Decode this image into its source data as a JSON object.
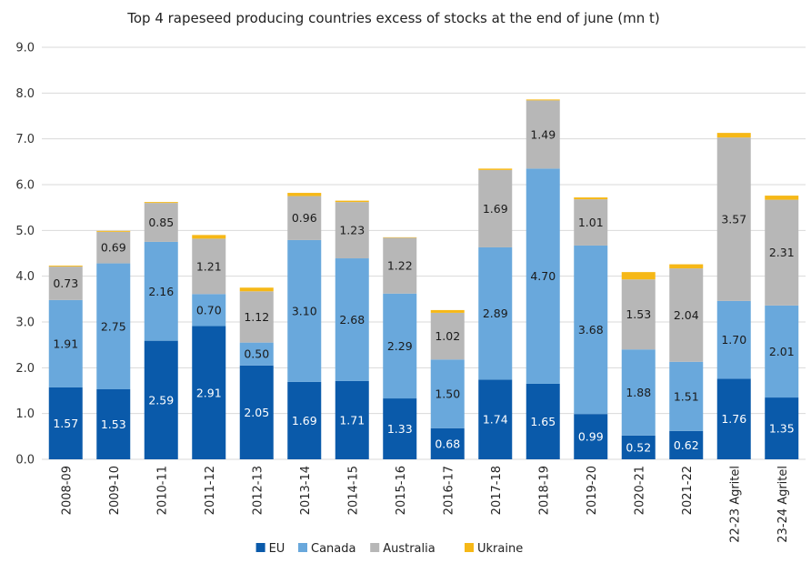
{
  "chart_data": {
    "type": "bar",
    "stacked": true,
    "title": "Top 4 rapeseed producing countries excess of stocks at the end of june (mn t)",
    "xlabel": "",
    "ylabel": "",
    "ylim": [
      0,
      9
    ],
    "yticks": [
      "0.0",
      "1.0",
      "2.0",
      "3.0",
      "4.0",
      "5.0",
      "6.0",
      "7.0",
      "8.0",
      "9.0"
    ],
    "grid": true,
    "legend_position": "bottom",
    "categories": [
      "2008-09",
      "2009-10",
      "2010-11",
      "2011-12",
      "2012-13",
      "2013-14",
      "2014-15",
      "2015-16",
      "2016-17",
      "2017-18",
      "2018-19",
      "2019-20",
      "2020-21",
      "2021-22",
      "22-23 Agritel",
      "23-24 Agritel"
    ],
    "series": [
      {
        "name": "EU",
        "color": "#0a5aaa",
        "label_color": "#ffffff",
        "values": [
          1.57,
          1.53,
          2.59,
          2.91,
          2.05,
          1.69,
          1.71,
          1.33,
          0.68,
          1.74,
          1.65,
          0.99,
          0.52,
          0.62,
          1.76,
          1.35
        ],
        "labels": [
          "1.57",
          "1.53",
          "2.59",
          "2.91",
          "2.05",
          "1.69",
          "1.71",
          "1.33",
          "0.68",
          "1.74",
          "1.65",
          "0.99",
          "0.52",
          "0.62",
          "1.76",
          "1.35"
        ]
      },
      {
        "name": "Canada",
        "color": "#69a8dc",
        "label_color": "#1a1a1a",
        "values": [
          1.91,
          2.75,
          2.16,
          0.7,
          0.5,
          3.1,
          2.68,
          2.29,
          1.5,
          2.89,
          4.7,
          3.68,
          1.88,
          1.51,
          1.7,
          2.01
        ],
        "labels": [
          "1.91",
          "2.75",
          "2.16",
          "0.70",
          "0.50",
          "3.10",
          "2.68",
          "2.29",
          "1.50",
          "2.89",
          "4.70",
          "3.68",
          "1.88",
          "1.51",
          "1.70",
          "2.01"
        ]
      },
      {
        "name": "Australia",
        "color": "#b7b7b7",
        "label_color": "#1a1a1a",
        "values": [
          0.73,
          0.69,
          0.85,
          1.21,
          1.12,
          0.96,
          1.23,
          1.22,
          1.02,
          1.69,
          1.49,
          1.01,
          1.53,
          2.04,
          3.57,
          2.31
        ],
        "labels": [
          "0.73",
          "0.69",
          "0.85",
          "1.21",
          "1.12",
          "0.96",
          "1.23",
          "1.22",
          "1.02",
          "1.69",
          "1.49",
          "1.01",
          "1.53",
          "2.04",
          "3.57",
          "2.31"
        ]
      },
      {
        "name": "Ukraine",
        "color": "#f6b817",
        "label_color": "#1a1a1a",
        "values": [
          0.02,
          0.02,
          0.02,
          0.08,
          0.08,
          0.07,
          0.03,
          0.01,
          0.06,
          0.03,
          0.02,
          0.04,
          0.16,
          0.09,
          0.1,
          0.09
        ],
        "labels": [
          "",
          "",
          "",
          "",
          "",
          "",
          "",
          "",
          "",
          "",
          "",
          "",
          "",
          "",
          "",
          ""
        ]
      }
    ]
  }
}
